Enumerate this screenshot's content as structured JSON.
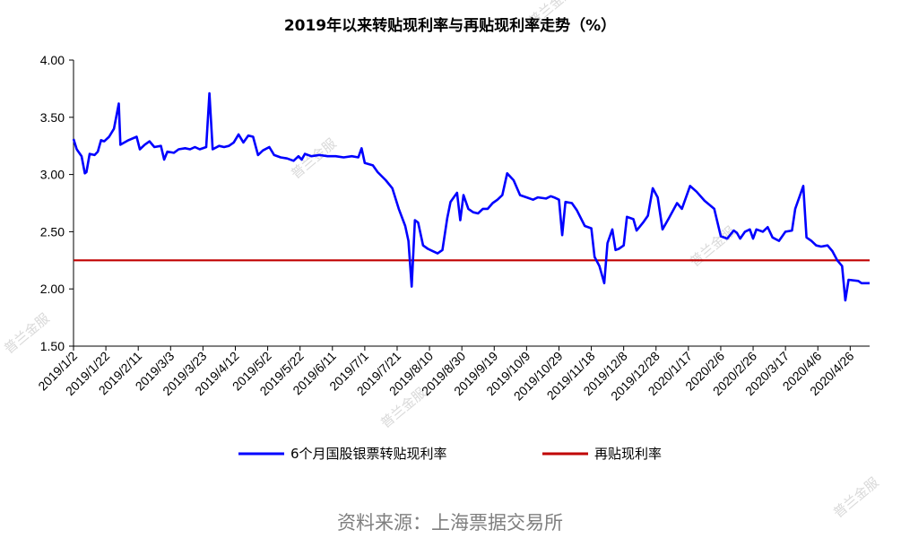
{
  "watermark": "普兰金服",
  "source": "资料来源：上海票据交易所",
  "colors": {
    "series_blue": "#0000ff",
    "series_red": "#c00000",
    "axis": "#000000"
  },
  "chart_data": {
    "type": "line",
    "title": "2019年以来转贴现利率与再贴现利率走势（%）",
    "ylim": [
      1.5,
      4.0
    ],
    "yticks": [
      "1.50",
      "2.00",
      "2.50",
      "3.00",
      "3.50",
      "4.00"
    ],
    "x_tick_labels": [
      "2019/1/2",
      "2019/1/22",
      "2019/2/11",
      "2019/3/3",
      "2019/3/23",
      "2019/4/12",
      "2019/5/2",
      "2019/5/22",
      "2019/6/11",
      "2019/7/1",
      "2019/7/21",
      "2019/8/10",
      "2019/8/30",
      "2019/9/19",
      "2019/10/9",
      "2019/10/29",
      "2019/11/18",
      "2019/12/8",
      "2019/12/28",
      "2020/1/17",
      "2020/2/6",
      "2020/2/26",
      "2020/3/17",
      "2020/4/6",
      "2020/4/26"
    ],
    "x_range": [
      "2019/1/2",
      "2020/5/8"
    ],
    "grid": false,
    "legend_position": "bottom",
    "series": [
      {
        "name": "6个月国股银票转贴现利率",
        "color": "#0000ff",
        "points": [
          [
            "2019/1/2",
            3.31
          ],
          [
            "2019/1/4",
            3.22
          ],
          [
            "2019/1/7",
            3.16
          ],
          [
            "2019/1/9",
            3.01
          ],
          [
            "2019/1/10",
            3.02
          ],
          [
            "2019/1/12",
            3.18
          ],
          [
            "2019/1/15",
            3.17
          ],
          [
            "2019/1/17",
            3.2
          ],
          [
            "2019/1/19",
            3.3
          ],
          [
            "2019/1/21",
            3.29
          ],
          [
            "2019/1/24",
            3.33
          ],
          [
            "2019/1/27",
            3.4
          ],
          [
            "2019/1/30",
            3.62
          ],
          [
            "2019/1/31",
            3.26
          ],
          [
            "2019/2/5",
            3.3
          ],
          [
            "2019/2/10",
            3.33
          ],
          [
            "2019/2/12",
            3.22
          ],
          [
            "2019/2/15",
            3.26
          ],
          [
            "2019/2/18",
            3.29
          ],
          [
            "2019/2/21",
            3.24
          ],
          [
            "2019/2/25",
            3.25
          ],
          [
            "2019/2/27",
            3.13
          ],
          [
            "2019/3/1",
            3.2
          ],
          [
            "2019/3/5",
            3.19
          ],
          [
            "2019/3/8",
            3.22
          ],
          [
            "2019/3/12",
            3.23
          ],
          [
            "2019/3/15",
            3.22
          ],
          [
            "2019/3/18",
            3.24
          ],
          [
            "2019/3/21",
            3.22
          ],
          [
            "2019/3/25",
            3.24
          ],
          [
            "2019/3/27",
            3.71
          ],
          [
            "2019/3/29",
            3.22
          ],
          [
            "2019/4/2",
            3.25
          ],
          [
            "2019/4/5",
            3.24
          ],
          [
            "2019/4/8",
            3.25
          ],
          [
            "2019/4/11",
            3.28
          ],
          [
            "2019/4/14",
            3.35
          ],
          [
            "2019/4/17",
            3.28
          ],
          [
            "2019/4/20",
            3.34
          ],
          [
            "2019/4/23",
            3.33
          ],
          [
            "2019/4/26",
            3.17
          ],
          [
            "2019/4/29",
            3.21
          ],
          [
            "2019/5/3",
            3.24
          ],
          [
            "2019/5/6",
            3.17
          ],
          [
            "2019/5/10",
            3.15
          ],
          [
            "2019/5/14",
            3.14
          ],
          [
            "2019/5/18",
            3.12
          ],
          [
            "2019/5/21",
            3.16
          ],
          [
            "2019/5/23",
            3.13
          ],
          [
            "2019/5/25",
            3.18
          ],
          [
            "2019/5/29",
            3.16
          ],
          [
            "2019/6/3",
            3.17
          ],
          [
            "2019/6/8",
            3.16
          ],
          [
            "2019/6/13",
            3.16
          ],
          [
            "2019/6/18",
            3.15
          ],
          [
            "2019/6/23",
            3.16
          ],
          [
            "2019/6/27",
            3.15
          ],
          [
            "2019/6/29",
            3.23
          ],
          [
            "2019/7/1",
            3.1
          ],
          [
            "2019/7/6",
            3.08
          ],
          [
            "2019/7/9",
            3.02
          ],
          [
            "2019/7/14",
            2.95
          ],
          [
            "2019/7/18",
            2.88
          ],
          [
            "2019/7/22",
            2.7
          ],
          [
            "2019/7/26",
            2.55
          ],
          [
            "2019/7/28",
            2.42
          ],
          [
            "2019/7/30",
            2.02
          ],
          [
            "2019/8/1",
            2.6
          ],
          [
            "2019/8/3",
            2.58
          ],
          [
            "2019/8/6",
            2.38
          ],
          [
            "2019/8/9",
            2.35
          ],
          [
            "2019/8/12",
            2.33
          ],
          [
            "2019/8/15",
            2.31
          ],
          [
            "2019/8/18",
            2.34
          ],
          [
            "2019/8/21",
            2.62
          ],
          [
            "2019/8/23",
            2.76
          ],
          [
            "2019/8/25",
            2.8
          ],
          [
            "2019/8/27",
            2.84
          ],
          [
            "2019/8/29",
            2.6
          ],
          [
            "2019/8/31",
            2.82
          ],
          [
            "2019/9/3",
            2.7
          ],
          [
            "2019/9/6",
            2.67
          ],
          [
            "2019/9/9",
            2.66
          ],
          [
            "2019/9/12",
            2.7
          ],
          [
            "2019/9/15",
            2.7
          ],
          [
            "2019/9/18",
            2.75
          ],
          [
            "2019/9/21",
            2.78
          ],
          [
            "2019/9/24",
            2.82
          ],
          [
            "2019/9/27",
            3.01
          ],
          [
            "2019/10/1",
            2.95
          ],
          [
            "2019/10/5",
            2.82
          ],
          [
            "2019/10/9",
            2.8
          ],
          [
            "2019/10/13",
            2.78
          ],
          [
            "2019/10/16",
            2.8
          ],
          [
            "2019/10/21",
            2.79
          ],
          [
            "2019/10/24",
            2.81
          ],
          [
            "2019/10/26",
            2.8
          ],
          [
            "2019/10/29",
            2.78
          ],
          [
            "2019/10/31",
            2.47
          ],
          [
            "2019/11/2",
            2.76
          ],
          [
            "2019/11/6",
            2.75
          ],
          [
            "2019/11/9",
            2.69
          ],
          [
            "2019/11/14",
            2.55
          ],
          [
            "2019/11/18",
            2.53
          ],
          [
            "2019/11/20",
            2.28
          ],
          [
            "2019/11/23",
            2.2
          ],
          [
            "2019/11/26",
            2.05
          ],
          [
            "2019/11/28",
            2.4
          ],
          [
            "2019/12/1",
            2.52
          ],
          [
            "2019/12/3",
            2.34
          ],
          [
            "2019/12/5",
            2.35
          ],
          [
            "2019/12/8",
            2.38
          ],
          [
            "2019/12/10",
            2.63
          ],
          [
            "2019/12/14",
            2.61
          ],
          [
            "2019/12/16",
            2.51
          ],
          [
            "2019/12/20",
            2.58
          ],
          [
            "2019/12/23",
            2.64
          ],
          [
            "2019/12/26",
            2.88
          ],
          [
            "2019/12/29",
            2.8
          ],
          [
            "2020/1/1",
            2.52
          ],
          [
            "2020/1/5",
            2.62
          ],
          [
            "2020/1/10",
            2.75
          ],
          [
            "2020/1/13",
            2.7
          ],
          [
            "2020/1/18",
            2.9
          ],
          [
            "2020/1/22",
            2.85
          ],
          [
            "2020/1/27",
            2.77
          ],
          [
            "2020/2/2",
            2.7
          ],
          [
            "2020/2/6",
            2.46
          ],
          [
            "2020/2/10",
            2.44
          ],
          [
            "2020/2/14",
            2.51
          ],
          [
            "2020/2/16",
            2.49
          ],
          [
            "2020/2/18",
            2.44
          ],
          [
            "2020/2/21",
            2.5
          ],
          [
            "2020/2/24",
            2.52
          ],
          [
            "2020/2/26",
            2.44
          ],
          [
            "2020/2/28",
            2.52
          ],
          [
            "2020/3/3",
            2.5
          ],
          [
            "2020/3/6",
            2.54
          ],
          [
            "2020/3/9",
            2.45
          ],
          [
            "2020/3/13",
            2.42
          ],
          [
            "2020/3/17",
            2.5
          ],
          [
            "2020/3/21",
            2.51
          ],
          [
            "2020/3/23",
            2.7
          ],
          [
            "2020/3/28",
            2.9
          ],
          [
            "2020/3/30",
            2.45
          ],
          [
            "2020/4/2",
            2.42
          ],
          [
            "2020/4/5",
            2.38
          ],
          [
            "2020/4/8",
            2.37
          ],
          [
            "2020/4/12",
            2.38
          ],
          [
            "2020/4/15",
            2.33
          ],
          [
            "2020/4/18",
            2.25
          ],
          [
            "2020/4/21",
            2.2
          ],
          [
            "2020/4/23",
            1.9
          ],
          [
            "2020/4/25",
            2.08
          ],
          [
            "2020/5/1",
            2.07
          ],
          [
            "2020/5/3",
            2.05
          ],
          [
            "2020/5/8",
            2.05
          ]
        ]
      },
      {
        "name": "再贴现利率",
        "color": "#c00000",
        "points": [
          [
            "2019/1/2",
            2.25
          ],
          [
            "2020/5/8",
            2.25
          ]
        ]
      }
    ]
  }
}
